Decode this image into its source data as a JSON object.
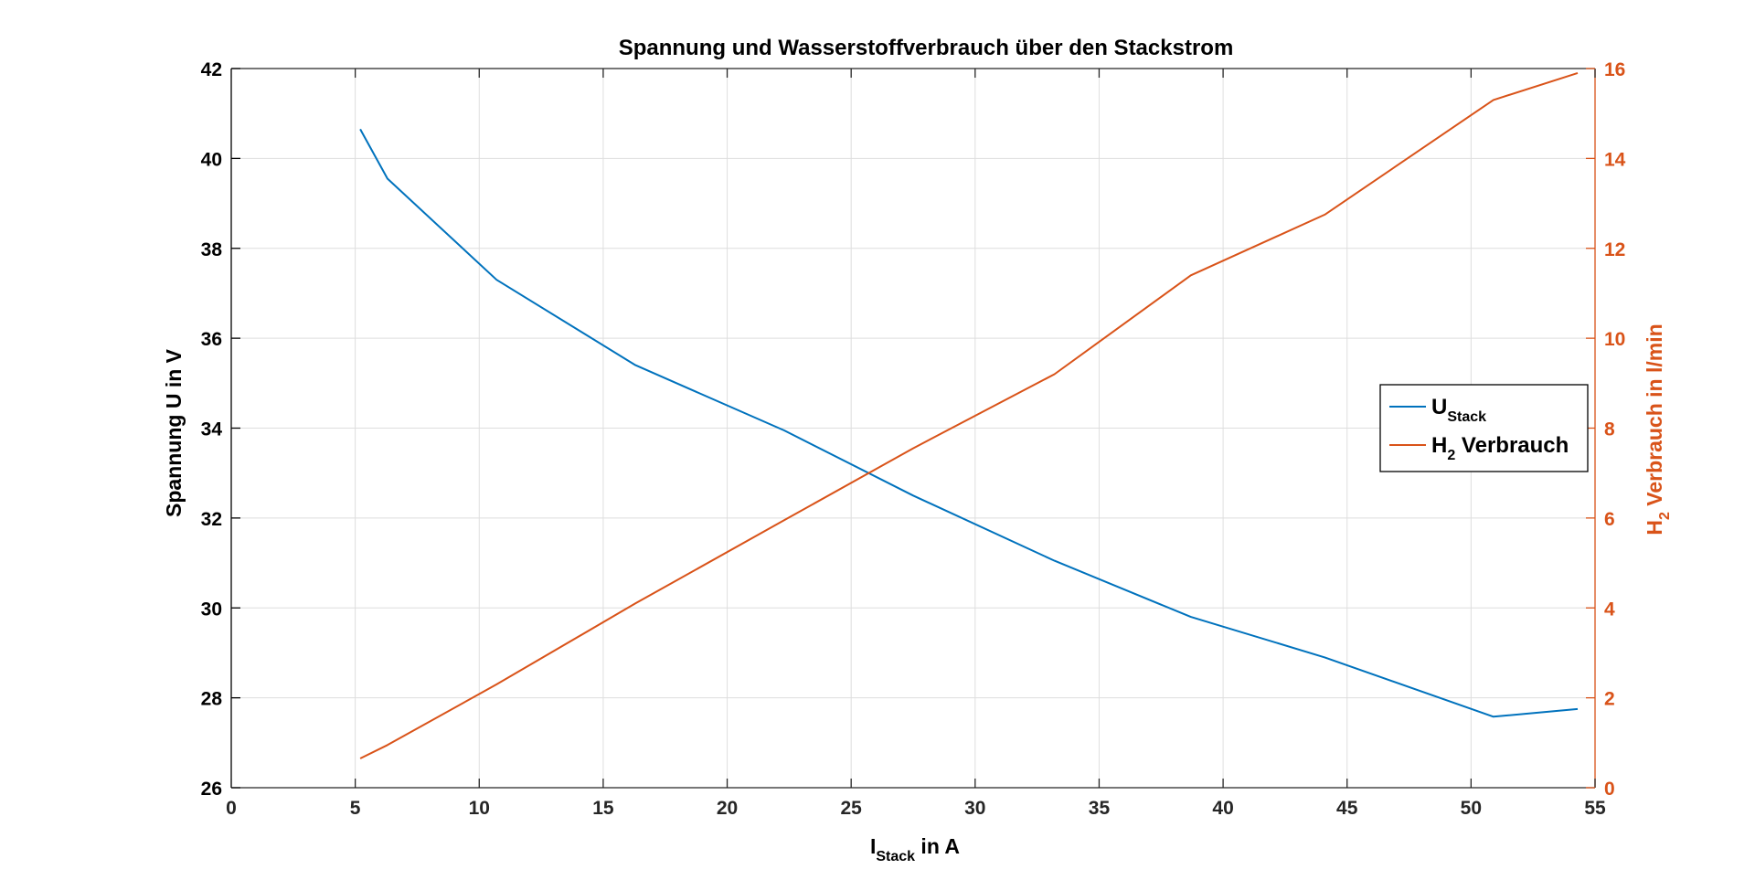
{
  "chart_data": {
    "type": "line",
    "title": "Spannung und Wasserstoffverbrauch über den Stackstrom",
    "xlabel": {
      "main": "I",
      "sub": "Stack",
      "rest": " in A"
    },
    "ylabel_left": "Spannung U in V",
    "ylabel_right": {
      "main": "H",
      "sub": "2",
      "rest": " Verbrauch in l/min"
    },
    "xlim": [
      0,
      55
    ],
    "ylim_left": [
      26,
      42
    ],
    "ylim_right": [
      0,
      16
    ],
    "x_ticks": [
      0,
      5,
      10,
      15,
      20,
      25,
      30,
      35,
      40,
      45,
      50,
      55
    ],
    "y_left_ticks": [
      26,
      28,
      30,
      32,
      34,
      36,
      38,
      40,
      42
    ],
    "y_right_ticks": [
      0,
      2,
      4,
      6,
      8,
      10,
      12,
      14,
      16
    ],
    "grid": true,
    "legend_position": "right",
    "colors": {
      "axis_left": "#000000",
      "axis_right": "#d95319"
    },
    "series": [
      {
        "name": {
          "main": "U",
          "sub": "Stack",
          "rest": ""
        },
        "axis": "left",
        "color": "#0072bd",
        "x": [
          5.2,
          6.3,
          10.7,
          16.3,
          22.3,
          27.5,
          33.2,
          38.7,
          44.1,
          50.9,
          54.3
        ],
        "y": [
          40.65,
          39.55,
          37.3,
          35.4,
          33.95,
          32.5,
          31.05,
          29.8,
          28.9,
          27.58,
          27.75
        ]
      },
      {
        "name": {
          "main": "H",
          "sub": "2",
          "rest": " Verbrauch"
        },
        "axis": "right",
        "color": "#d95319",
        "x": [
          5.2,
          6.3,
          10.7,
          16.3,
          22.3,
          27.5,
          33.2,
          38.7,
          44.1,
          50.9,
          54.3
        ],
        "y": [
          0.65,
          0.95,
          2.3,
          4.1,
          5.95,
          7.55,
          9.2,
          11.4,
          12.75,
          15.3,
          15.9
        ]
      }
    ]
  }
}
